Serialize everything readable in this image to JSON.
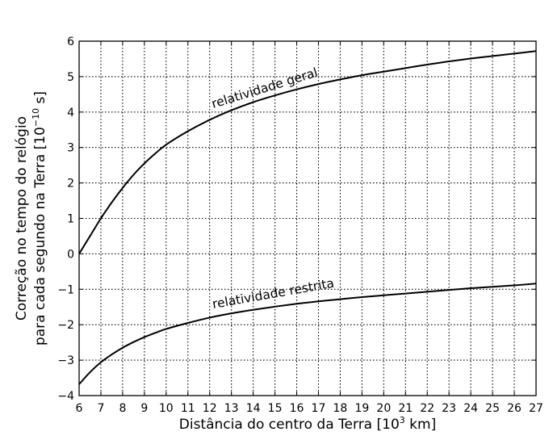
{
  "chart_data": {
    "type": "line",
    "xlabel_main": "Distância do centro da Terra [",
    "xlabel_unit_base": "10",
    "xlabel_unit_exp": "3",
    "xlabel_unit_tail": " km]",
    "ylabel_line1": "Correção no tempo do relógio",
    "ylabel_line2_main": "para cada segundo na Terra [",
    "ylabel_line2_base": "10",
    "ylabel_line2_exp": "−10",
    "ylabel_line2_tail": " s]",
    "xlim": [
      6,
      27
    ],
    "ylim": [
      -4,
      6
    ],
    "x_ticks": [
      6,
      7,
      8,
      9,
      10,
      11,
      12,
      13,
      14,
      15,
      16,
      17,
      18,
      19,
      20,
      21,
      22,
      23,
      24,
      25,
      26,
      27
    ],
    "y_ticks": [
      -4,
      -3,
      -2,
      -1,
      0,
      1,
      2,
      3,
      4,
      5,
      6
    ],
    "y_tick_labels": [
      "−4",
      "−3",
      "−2",
      "−1",
      "0",
      "1",
      "2",
      "3",
      "4",
      "5",
      "6"
    ],
    "grid": true,
    "series": [
      {
        "name": "relatividade geral",
        "x": [
          6,
          6.5,
          7,
          7.5,
          8,
          8.5,
          9,
          9.5,
          10,
          11,
          12,
          13,
          14,
          15,
          16,
          17,
          18,
          19,
          20,
          21,
          22,
          23,
          24,
          25,
          26,
          27
        ],
        "y": [
          0.0,
          0.5,
          1.0,
          1.45,
          1.86,
          2.23,
          2.55,
          2.83,
          3.08,
          3.46,
          3.78,
          4.05,
          4.28,
          4.47,
          4.64,
          4.79,
          4.92,
          5.04,
          5.14,
          5.24,
          5.34,
          5.43,
          5.51,
          5.58,
          5.65,
          5.72
        ]
      },
      {
        "name": "relatividade restrita",
        "x": [
          6,
          6.5,
          7,
          7.5,
          8,
          8.5,
          9,
          9.5,
          10,
          11,
          12,
          13,
          14,
          15,
          16,
          17,
          18,
          19,
          20,
          21,
          22,
          23,
          24,
          25,
          26,
          27
        ],
        "y": [
          -3.68,
          -3.34,
          -3.06,
          -2.84,
          -2.65,
          -2.49,
          -2.35,
          -2.23,
          -2.12,
          -1.95,
          -1.8,
          -1.68,
          -1.58,
          -1.49,
          -1.41,
          -1.34,
          -1.28,
          -1.22,
          -1.17,
          -1.12,
          -1.07,
          -1.02,
          -0.97,
          -0.93,
          -0.89,
          -0.84
        ]
      }
    ]
  }
}
